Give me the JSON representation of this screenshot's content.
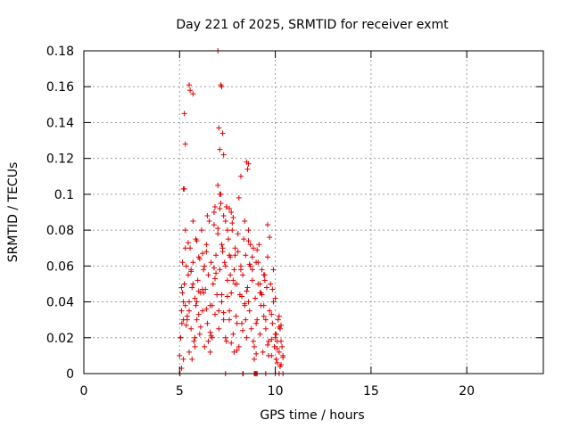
{
  "chart_data": {
    "type": "scatter",
    "title": "Day 221 of 2025, SRMTID for receiver exmt",
    "xlabel": "GPS time / hours",
    "ylabel": "SRMTID / TECUs",
    "xlim": [
      0,
      24
    ],
    "ylim": [
      0,
      0.18
    ],
    "xticks": [
      0,
      5,
      10,
      15,
      20
    ],
    "xtick_labels": [
      "0",
      "5",
      "10",
      "15",
      "20"
    ],
    "yticks": [
      0,
      0.02,
      0.04,
      0.06,
      0.08,
      0.1,
      0.12,
      0.14,
      0.16,
      0.18
    ],
    "ytick_labels": [
      "0",
      "0.02",
      "0.04",
      "0.06",
      "0.08",
      "0.1",
      "0.12",
      "0.14",
      "0.16",
      "0.18"
    ],
    "grid": true,
    "marker": "+",
    "color": "#e00000",
    "series": [
      {
        "name": "SRMTID",
        "x": [
          5.0,
          5.05,
          5.1,
          5.12,
          5.15,
          5.2,
          5.25,
          5.3,
          5.35,
          5.4,
          5.45,
          5.5,
          5.55,
          5.6,
          5.65,
          5.7,
          5.75,
          5.8,
          5.85,
          5.9,
          5.95,
          6.0,
          6.05,
          6.1,
          6.15,
          6.2,
          6.25,
          6.3,
          6.35,
          6.4,
          6.45,
          6.5,
          6.55,
          6.6,
          6.65,
          6.7,
          6.75,
          6.8,
          6.85,
          6.9,
          6.95,
          7.0,
          7.05,
          7.1,
          7.15,
          7.2,
          7.25,
          7.3,
          7.35,
          7.4,
          7.45,
          7.5,
          7.55,
          7.6,
          7.65,
          7.7,
          7.75,
          7.8,
          7.85,
          7.9,
          7.95,
          8.0,
          8.05,
          8.1,
          8.15,
          8.2,
          8.25,
          8.3,
          8.35,
          8.4,
          8.45,
          8.5,
          8.55,
          8.6,
          8.65,
          8.7,
          8.75,
          8.8,
          8.85,
          8.9,
          8.95,
          9.0,
          9.05,
          9.1,
          9.15,
          9.2,
          9.25,
          9.3,
          9.35,
          9.4,
          9.45,
          9.5,
          9.55,
          9.6,
          9.65,
          9.7,
          9.75,
          9.8,
          9.85,
          9.9,
          9.95,
          10.0,
          10.05,
          10.1,
          10.15,
          10.2,
          10.25,
          10.3,
          10.35,
          10.4,
          5.15,
          5.2,
          5.25,
          5.3,
          5.35,
          5.5,
          5.6,
          5.7,
          5.8,
          5.9,
          6.0,
          6.2,
          6.4,
          6.6,
          6.8,
          7.0,
          7.1,
          7.2,
          7.3,
          7.4,
          7.5,
          7.6,
          7.7,
          7.8,
          7.9,
          8.0,
          8.2,
          8.4,
          8.6,
          8.8,
          9.0,
          9.2,
          9.4,
          9.6,
          9.8,
          10.0,
          10.1,
          10.2,
          10.3,
          5.1,
          5.3,
          5.5,
          5.7,
          5.9,
          6.1,
          6.3,
          6.5,
          6.7,
          6.9,
          7.1,
          7.3,
          7.5,
          7.7,
          7.9,
          8.1,
          8.3,
          8.5,
          8.7,
          8.9,
          9.1,
          9.3,
          9.5,
          9.7,
          9.9,
          10.1,
          10.3,
          5.05,
          5.25,
          5.45,
          5.65,
          5.85,
          6.05,
          6.25,
          6.45,
          6.65,
          6.85,
          7.05,
          7.25,
          7.45,
          7.65,
          7.85,
          8.05,
          8.25,
          8.45,
          8.65,
          8.85,
          9.05,
          9.25,
          9.45,
          9.65,
          9.85,
          10.05,
          10.25,
          5.2,
          5.4,
          5.6,
          5.8,
          6.0,
          6.2,
          6.4,
          6.6,
          6.8,
          7.0,
          7.2,
          7.4,
          7.6,
          7.8,
          8.0,
          8.2,
          8.4,
          8.6,
          8.8,
          9.0,
          9.2,
          9.4,
          9.6,
          9.8,
          10.0,
          10.2,
          10.4,
          5.1,
          5.2,
          5.25,
          5.3,
          5.5,
          5.55,
          5.7,
          7.1,
          7.15,
          7.2,
          7.0,
          7.05,
          7.25,
          7.3,
          8.5,
          8.55,
          8.6,
          6.85,
          7.15,
          7.45,
          7.6,
          7.75,
          5.0,
          5.02,
          7.4,
          8.3,
          8.32,
          8.9,
          8.95,
          9.0,
          9.05,
          9.5,
          10.0,
          10.2,
          10.4
        ],
        "y": [
          0.01,
          0.02,
          0.035,
          0.028,
          0.045,
          0.03,
          0.05,
          0.038,
          0.06,
          0.032,
          0.055,
          0.04,
          0.07,
          0.025,
          0.048,
          0.062,
          0.018,
          0.042,
          0.075,
          0.03,
          0.052,
          0.065,
          0.022,
          0.045,
          0.08,
          0.035,
          0.058,
          0.015,
          0.047,
          0.072,
          0.028,
          0.055,
          0.085,
          0.038,
          0.062,
          0.02,
          0.05,
          0.09,
          0.033,
          0.066,
          0.044,
          0.078,
          0.025,
          0.058,
          0.095,
          0.04,
          0.07,
          0.03,
          0.062,
          0.085,
          0.018,
          0.052,
          0.075,
          0.035,
          0.065,
          0.045,
          0.08,
          0.022,
          0.058,
          0.07,
          0.032,
          0.05,
          0.068,
          0.015,
          0.044,
          0.06,
          0.028,
          0.055,
          0.075,
          0.038,
          0.066,
          0.02,
          0.048,
          0.08,
          0.035,
          0.06,
          0.025,
          0.052,
          0.07,
          0.015,
          0.042,
          0.062,
          0.03,
          0.05,
          0.072,
          0.022,
          0.045,
          0.058,
          0.012,
          0.038,
          0.055,
          0.025,
          0.048,
          0.065,
          0.018,
          0.035,
          0.05,
          0.01,
          0.028,
          0.04,
          0.015,
          0.022,
          0.008,
          0.018,
          0.03,
          0.012,
          0.025,
          0.005,
          0.015,
          0.01,
          0.062,
          0.04,
          0.103,
          0.08,
          0.027,
          0.035,
          0.058,
          0.05,
          0.02,
          0.074,
          0.033,
          0.047,
          0.068,
          0.012,
          0.083,
          0.105,
          0.1,
          0.072,
          0.088,
          0.06,
          0.043,
          0.03,
          0.09,
          0.052,
          0.066,
          0.013,
          0.058,
          0.085,
          0.04,
          0.065,
          0.028,
          0.045,
          0.055,
          0.016,
          0.033,
          0.02,
          0.006,
          0.032,
          0.018,
          0.048,
          0.07,
          0.012,
          0.085,
          0.04,
          0.026,
          0.06,
          0.018,
          0.038,
          0.056,
          0.092,
          0.034,
          0.08,
          0.017,
          0.05,
          0.098,
          0.024,
          0.046,
          0.072,
          0.008,
          0.062,
          0.044,
          0.03,
          0.076,
          0.058,
          0.014,
          0.027,
          0.02,
          0.05,
          0.073,
          0.008,
          0.038,
          0.064,
          0.045,
          0.088,
          0.021,
          0.053,
          0.035,
          0.068,
          0.093,
          0.055,
          0.012,
          0.078,
          0.043,
          0.03,
          0.061,
          0.018,
          0.069,
          0.038,
          0.052,
          0.01,
          0.047,
          0.022,
          0.004,
          0.008,
          0.03,
          0.057,
          0.015,
          0.046,
          0.067,
          0.036,
          0.023,
          0.059,
          0.081,
          0.044,
          0.02,
          0.066,
          0.087,
          0.028,
          0.11,
          0.039,
          0.074,
          0.058,
          0.011,
          0.05,
          0.032,
          0.083,
          0.019,
          0.042,
          0.026,
          0.009,
          0.003,
          0.103,
          0.145,
          0.128,
          0.161,
          0.158,
          0.156,
          0.125,
          0.161,
          0.16,
          0.18,
          0.137,
          0.134,
          0.122,
          0.118,
          0.114,
          0.117,
          0.093,
          0.1,
          0.093,
          0.092,
          0.084,
          0.0,
          0.0,
          0.0,
          0.0,
          0.0,
          0.0,
          0.0,
          0.0,
          0.0,
          0.0,
          0.0,
          0.0,
          0.0
        ]
      }
    ]
  }
}
